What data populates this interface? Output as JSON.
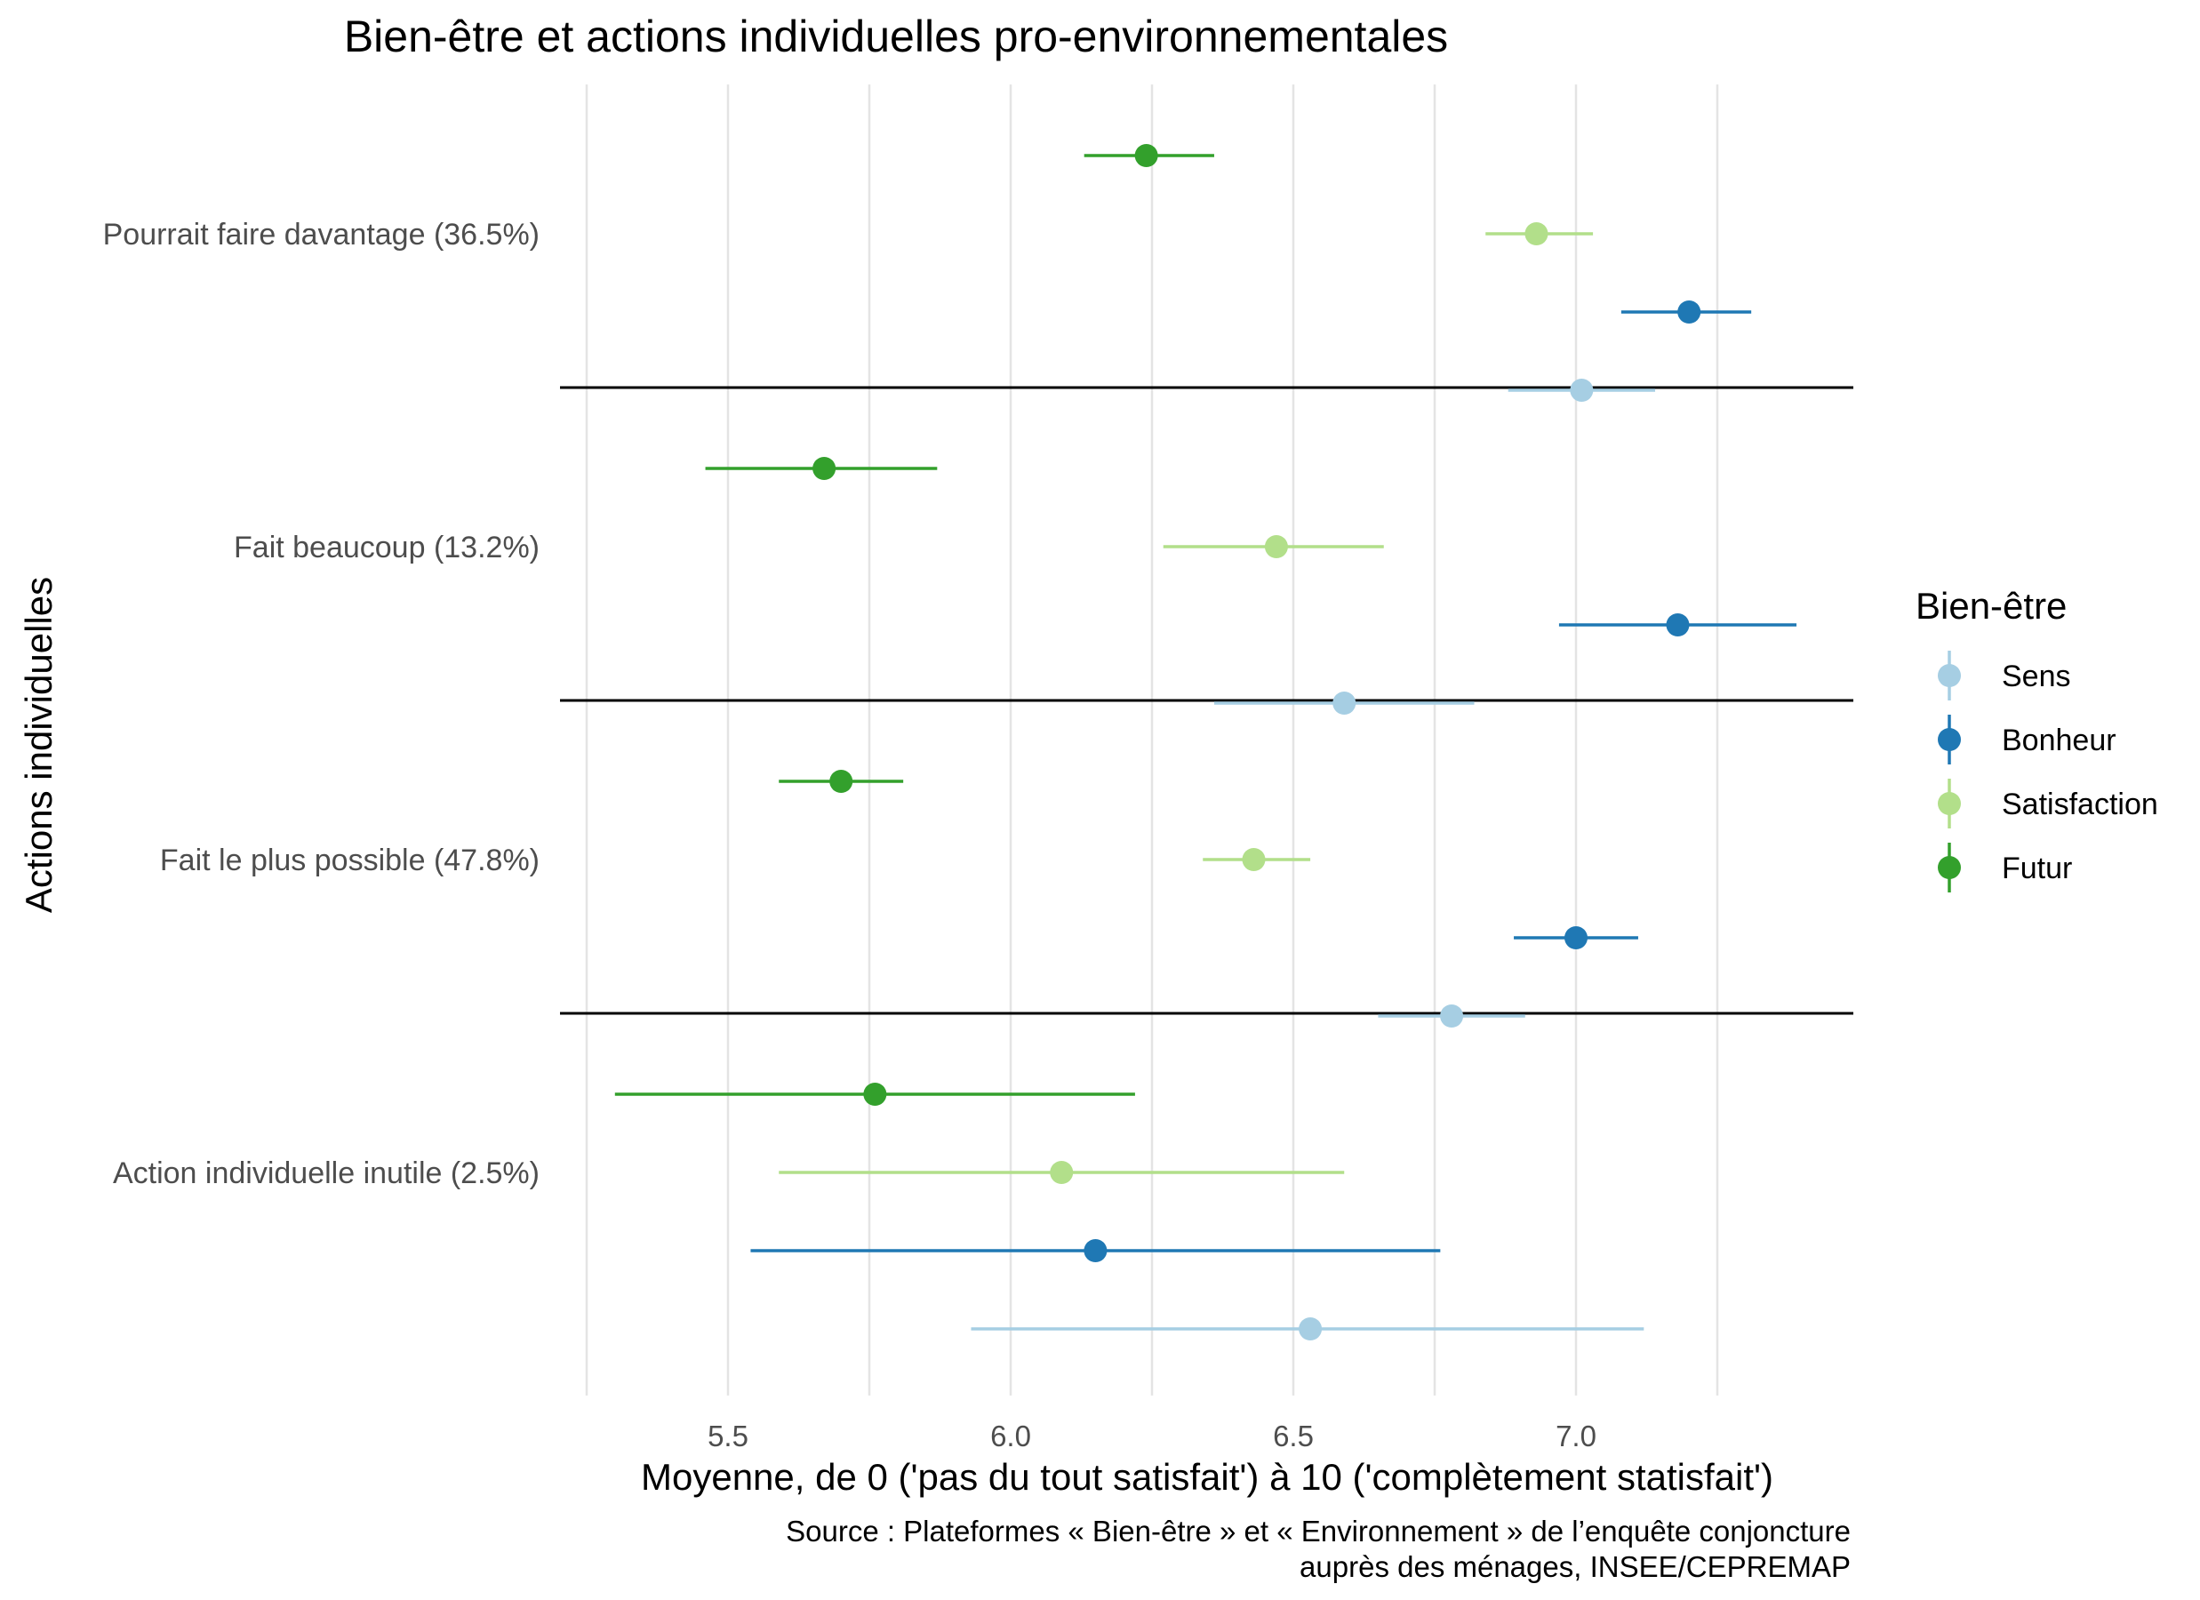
{
  "chart_data": {
    "type": "dot-errorbar",
    "title": "Bien-être et actions individuelles pro-environnementales",
    "xlabel": "Moyenne, de 0 ('pas du tout satisfait') à 10 ('complètement statisfait')",
    "ylabel": "Actions individuelles",
    "source_line1": "Source : Plateformes « Bien-être » et « Environnement » de l’enquête conjoncture",
    "source_line2": "auprès des ménages, INSEE/CEPREMAP",
    "xlim": [
      5.25,
      7.5
    ],
    "x_ticks": [
      5.5,
      6.0,
      6.5,
      7.0
    ],
    "x_tick_labels": [
      "5.5",
      "6.0",
      "6.5",
      "7.0"
    ],
    "grid": true,
    "legend": {
      "title": "Bien-être",
      "position": "right",
      "entries": [
        "Sens",
        "Bonheur",
        "Satisfaction",
        "Futur"
      ]
    },
    "colors": {
      "Sens": "#a6cee3",
      "Bonheur": "#1f78b4",
      "Satisfaction": "#b2df8a",
      "Futur": "#33a02c"
    },
    "categories": [
      "Pourrait faire davantage (36.5%)",
      "Fait beaucoup (13.2%)",
      "Fait le plus possible (47.8%)",
      "Action individuelle inutile (2.5%)"
    ],
    "series": [
      {
        "name": "Futur",
        "points": [
          {
            "mean": 6.24,
            "low": 6.13,
            "high": 6.36
          },
          {
            "mean": 5.67,
            "low": 5.46,
            "high": 5.87
          },
          {
            "mean": 5.7,
            "low": 5.59,
            "high": 5.81
          },
          {
            "mean": 5.76,
            "low": 5.3,
            "high": 6.22
          }
        ]
      },
      {
        "name": "Satisfaction",
        "points": [
          {
            "mean": 6.93,
            "low": 6.84,
            "high": 7.03
          },
          {
            "mean": 6.47,
            "low": 6.27,
            "high": 6.66
          },
          {
            "mean": 6.43,
            "low": 6.34,
            "high": 6.53
          },
          {
            "mean": 6.09,
            "low": 5.59,
            "high": 6.59
          }
        ]
      },
      {
        "name": "Bonheur",
        "points": [
          {
            "mean": 7.2,
            "low": 7.08,
            "high": 7.31
          },
          {
            "mean": 7.18,
            "low": 6.97,
            "high": 7.39
          },
          {
            "mean": 7.0,
            "low": 6.89,
            "high": 7.11
          },
          {
            "mean": 6.15,
            "low": 5.54,
            "high": 6.76
          }
        ]
      },
      {
        "name": "Sens",
        "points": [
          {
            "mean": 7.01,
            "low": 6.88,
            "high": 7.14
          },
          {
            "mean": 6.59,
            "low": 6.36,
            "high": 6.82
          },
          {
            "mean": 6.78,
            "low": 6.65,
            "high": 6.91
          },
          {
            "mean": 6.53,
            "low": 5.93,
            "high": 7.12
          }
        ]
      }
    ]
  }
}
